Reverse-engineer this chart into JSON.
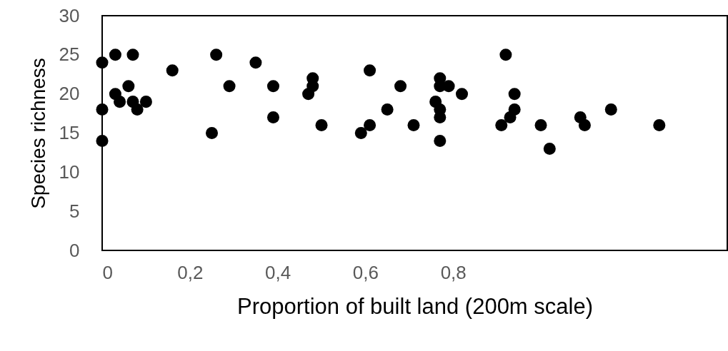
{
  "chart_data": {
    "type": "scatter",
    "xlabel": "Proportion of built land (200m scale)",
    "ylabel": "Species richness",
    "x": [
      0,
      0.03,
      0.07,
      0,
      0,
      0.03,
      0.06,
      0.04,
      0.07,
      0.08,
      0.1,
      0.16,
      0.25,
      0.26,
      0.29,
      0.35,
      0.39,
      0.39,
      0.48,
      0.48,
      0.47,
      0.5,
      0.61,
      0.59,
      0.61,
      0.65,
      0.68,
      0.71,
      0.76,
      0.77,
      0.77,
      0.77,
      0.77,
      0.79,
      0.82,
      0.77,
      0.92,
      0.91,
      0.94,
      0.94,
      0.93,
      1.0,
      1.02,
      1.09,
      1.1,
      1.16,
      1.27
    ],
    "values": [
      24,
      25,
      25,
      18,
      14,
      20,
      21,
      19,
      19,
      18,
      19,
      23,
      15,
      25,
      21,
      24,
      21,
      17,
      22,
      21,
      20,
      16,
      23,
      15,
      16,
      18,
      21,
      16,
      19,
      18,
      17,
      22,
      21,
      21,
      20,
      14,
      25,
      16,
      20,
      18,
      17,
      16,
      13,
      17,
      16,
      18,
      16
    ],
    "color": "#000000",
    "marker": "circle",
    "xlim": [
      0,
      1.425
    ],
    "xticks": [
      {
        "value": 0,
        "label": "0"
      },
      {
        "value": 0.2,
        "label": "0,2"
      },
      {
        "value": 0.4,
        "label": "0,4"
      },
      {
        "value": 0.6,
        "label": "0,6"
      },
      {
        "value": 0.8,
        "label": "0,8"
      }
    ],
    "ylim": [
      0,
      30
    ],
    "yticks": [
      0,
      5,
      10,
      15,
      20,
      25,
      30
    ],
    "grid": false,
    "legend": false
  }
}
